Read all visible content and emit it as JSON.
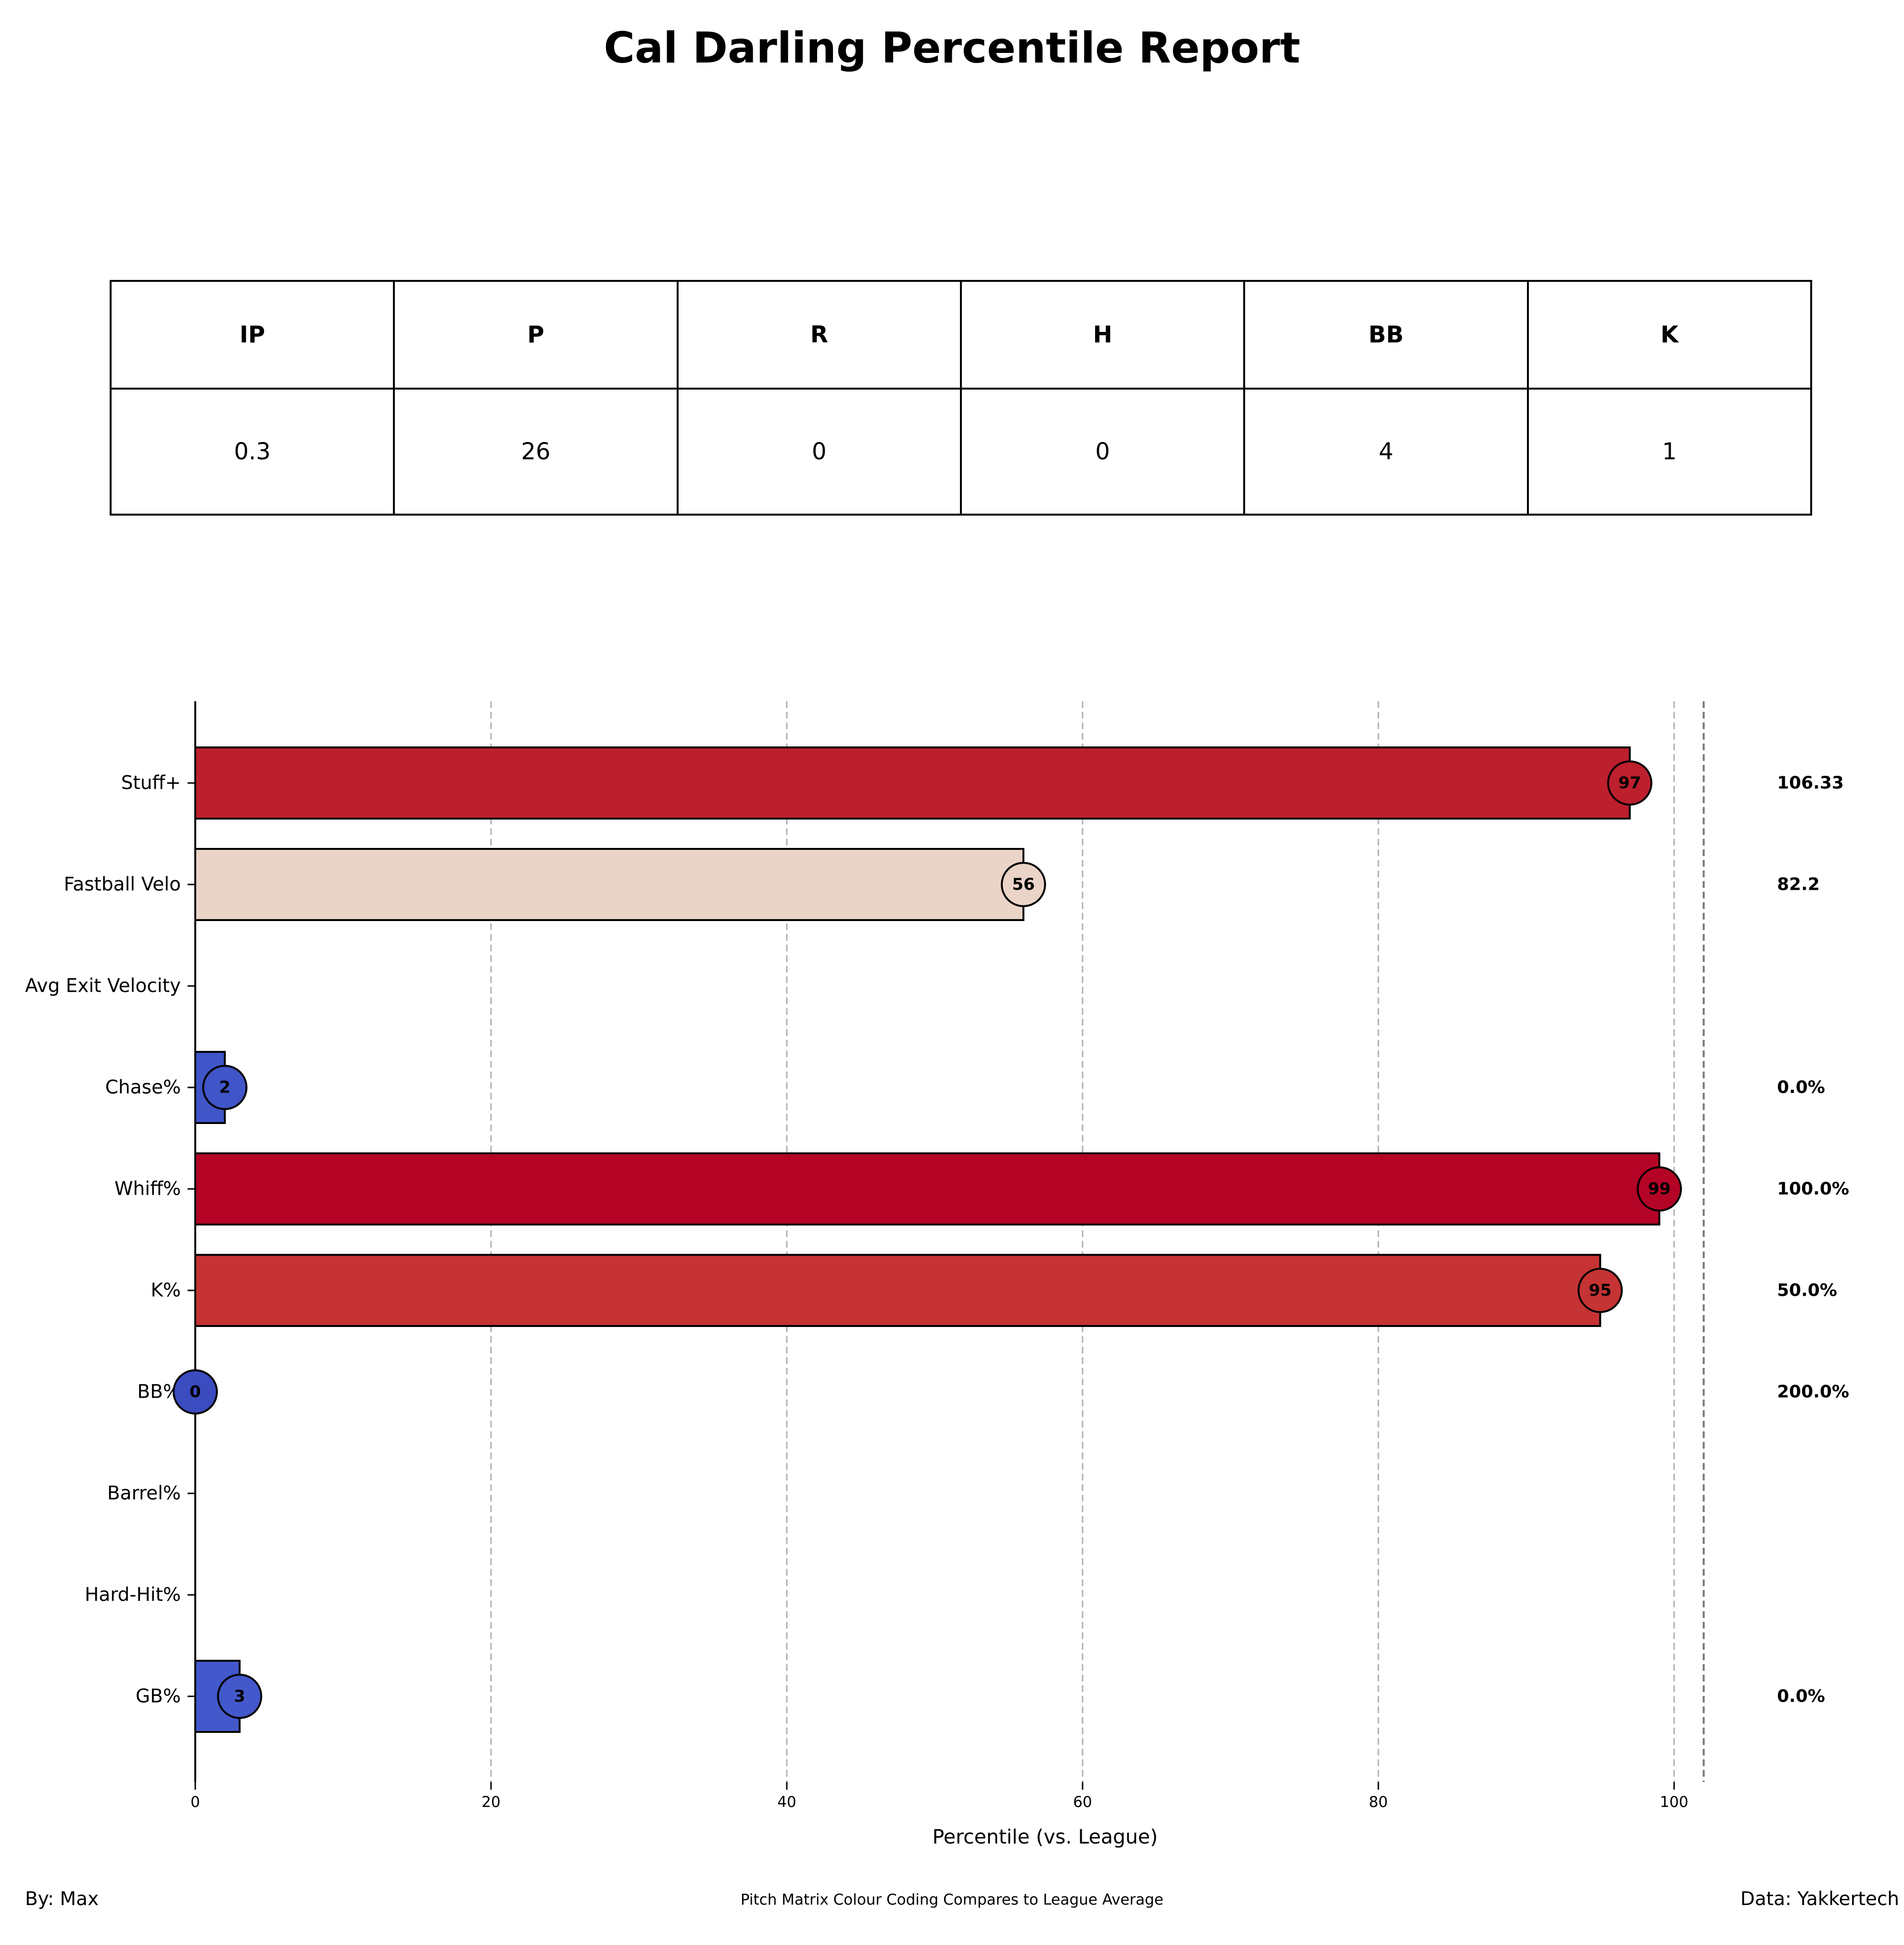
{
  "title": "Cal Darling Percentile Report",
  "stats_table": {
    "headers": [
      "IP",
      "P",
      "R",
      "H",
      "BB",
      "K"
    ],
    "values": [
      "0.3",
      "26",
      "0",
      "0",
      "4",
      "1"
    ]
  },
  "chart_data": {
    "type": "bar",
    "orientation": "horizontal",
    "categories": [
      "Stuff+",
      "Fastball Velo",
      "Avg Exit Velocity",
      "Chase%",
      "Whiff%",
      "K%",
      "BB%",
      "Barrel%",
      "Hard-Hit%",
      "GB%"
    ],
    "percentiles": [
      97,
      56,
      null,
      2,
      99,
      95,
      0,
      null,
      null,
      3
    ],
    "percentile_labels": [
      "97",
      "56",
      "",
      "2",
      "99",
      "95",
      "0",
      "",
      "",
      "3"
    ],
    "raw_values": [
      "106.33",
      "82.2",
      "",
      "0.0%",
      "100.0%",
      "50.0%",
      "200.0%",
      "",
      "",
      "0.0%"
    ],
    "colors": [
      "#bd1f2d",
      "#ead4c8",
      "",
      "#4055c8",
      "#b40426",
      "#c53334",
      "#3b4cc0",
      "",
      "",
      "#4358cb"
    ],
    "xlabel": "Percentile (vs. League)",
    "xlim": [
      0,
      102
    ],
    "xticks": [
      "0",
      "20",
      "40",
      "60",
      "80",
      "100"
    ],
    "grid": true
  },
  "footer": {
    "left": "By: Max",
    "center": "Pitch Matrix Colour Coding Compares to League Average",
    "right": "Data: Yakkertech"
  }
}
